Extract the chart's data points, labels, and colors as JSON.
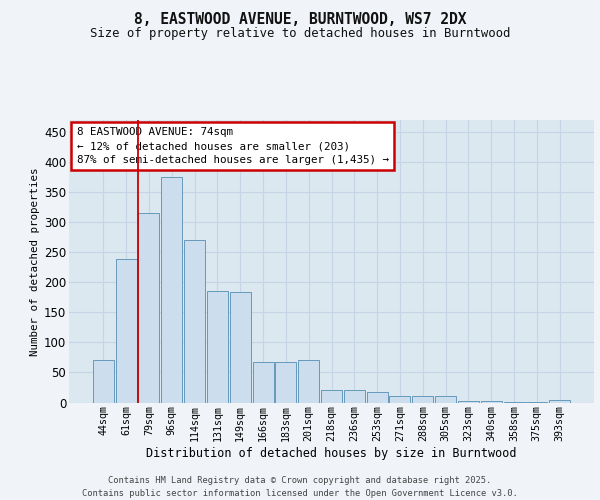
{
  "title_line1": "8, EASTWOOD AVENUE, BURNTWOOD, WS7 2DX",
  "title_line2": "Size of property relative to detached houses in Burntwood",
  "xlabel": "Distribution of detached houses by size in Burntwood",
  "ylabel": "Number of detached properties",
  "categories": [
    "44sqm",
    "61sqm",
    "79sqm",
    "96sqm",
    "114sqm",
    "131sqm",
    "149sqm",
    "166sqm",
    "183sqm",
    "201sqm",
    "218sqm",
    "236sqm",
    "253sqm",
    "271sqm",
    "288sqm",
    "305sqm",
    "323sqm",
    "340sqm",
    "358sqm",
    "375sqm",
    "393sqm"
  ],
  "values": [
    70,
    238,
    315,
    375,
    270,
    185,
    184,
    67,
    68,
    70,
    20,
    20,
    17,
    10,
    10,
    10,
    3,
    3,
    1,
    1,
    4
  ],
  "bar_color": "#ccdded",
  "bar_edge_color": "#6699bb",
  "grid_color": "#c5d5e5",
  "background_color": "#dce8f0",
  "annotation_text": "8 EASTWOOD AVENUE: 74sqm\n← 12% of detached houses are smaller (203)\n87% of semi-detached houses are larger (1,435) →",
  "annotation_box_color": "#ffffff",
  "annotation_box_edge": "#cc0000",
  "vline_x": 1,
  "vline_color": "#cc0000",
  "ylim": [
    0,
    470
  ],
  "yticks": [
    0,
    50,
    100,
    150,
    200,
    250,
    300,
    350,
    400,
    450
  ],
  "footer_line1": "Contains HM Land Registry data © Crown copyright and database right 2025.",
  "footer_line2": "Contains public sector information licensed under the Open Government Licence v3.0.",
  "fig_bg": "#f0f4f8"
}
